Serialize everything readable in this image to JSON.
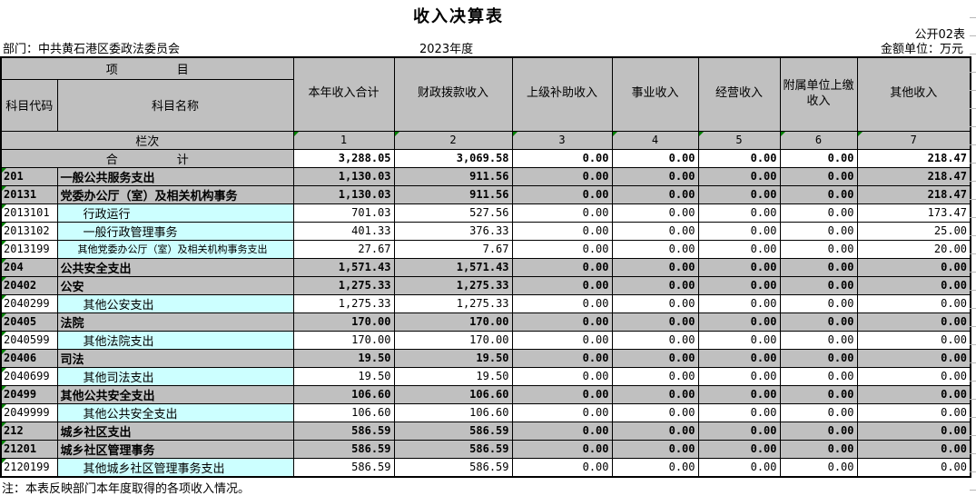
{
  "page": {
    "title": "收入决算表",
    "table_code": "公开02表",
    "department": "部门：中共黄石港区委政法委员会",
    "year": "2023年度",
    "unit": "金额单位：万元",
    "note": "注：本表反映部门本年度取得的各项收入情况。"
  },
  "colors": {
    "header_bg": "#C0C0C0",
    "detail_name_bg": "#CCFFFF",
    "cell_marker_green": "#008000",
    "border": "#000000"
  },
  "table": {
    "project_header": "项　　　　　目",
    "code_header": "科目代码",
    "name_header": "科目名称",
    "column_headers": [
      "本年收入合计",
      "财政拨款收入",
      "上级补助收入",
      "事业收入",
      "经营收入",
      "附属单位上缴收入",
      "其他收入"
    ],
    "lanci_label": "栏次",
    "column_numbers": [
      "1",
      "2",
      "3",
      "4",
      "5",
      "6",
      "7"
    ],
    "total_row": {
      "label": "合　　　　　计",
      "values": [
        "3,288.05",
        "3,069.58",
        "0.00",
        "0.00",
        "0.00",
        "0.00",
        "218.47"
      ]
    },
    "rows": [
      {
        "code": "201",
        "name": "一般公共服务支出",
        "type": "section",
        "values": [
          "1,130.03",
          "911.56",
          "0.00",
          "0.00",
          "0.00",
          "0.00",
          "218.47"
        ]
      },
      {
        "code": "20131",
        "name": "党委办公厅（室）及相关机构事务",
        "type": "section",
        "values": [
          "1,130.03",
          "911.56",
          "0.00",
          "0.00",
          "0.00",
          "0.00",
          "218.47"
        ]
      },
      {
        "code": "2013101",
        "name": "行政运行",
        "type": "detail",
        "values": [
          "701.03",
          "527.56",
          "0.00",
          "0.00",
          "0.00",
          "0.00",
          "173.47"
        ]
      },
      {
        "code": "2013102",
        "name": "一般行政管理事务",
        "type": "detail",
        "values": [
          "401.33",
          "376.33",
          "0.00",
          "0.00",
          "0.00",
          "0.00",
          "25.00"
        ]
      },
      {
        "code": "2013199",
        "name": "其他党委办公厅（室）及相关机构事务支出",
        "type": "detail",
        "small": true,
        "values": [
          "27.67",
          "7.67",
          "0.00",
          "0.00",
          "0.00",
          "0.00",
          "20.00"
        ]
      },
      {
        "code": "204",
        "name": "公共安全支出",
        "type": "section",
        "values": [
          "1,571.43",
          "1,571.43",
          "0.00",
          "0.00",
          "0.00",
          "0.00",
          "0.00"
        ]
      },
      {
        "code": "20402",
        "name": "公安",
        "type": "section",
        "values": [
          "1,275.33",
          "1,275.33",
          "0.00",
          "0.00",
          "0.00",
          "0.00",
          "0.00"
        ]
      },
      {
        "code": "2040299",
        "name": "其他公安支出",
        "type": "detail",
        "values": [
          "1,275.33",
          "1,275.33",
          "0.00",
          "0.00",
          "0.00",
          "0.00",
          "0.00"
        ]
      },
      {
        "code": "20405",
        "name": "法院",
        "type": "section",
        "values": [
          "170.00",
          "170.00",
          "0.00",
          "0.00",
          "0.00",
          "0.00",
          "0.00"
        ]
      },
      {
        "code": "2040599",
        "name": "其他法院支出",
        "type": "detail",
        "values": [
          "170.00",
          "170.00",
          "0.00",
          "0.00",
          "0.00",
          "0.00",
          "0.00"
        ]
      },
      {
        "code": "20406",
        "name": "司法",
        "type": "section",
        "values": [
          "19.50",
          "19.50",
          "0.00",
          "0.00",
          "0.00",
          "0.00",
          "0.00"
        ]
      },
      {
        "code": "2040699",
        "name": "其他司法支出",
        "type": "detail",
        "values": [
          "19.50",
          "19.50",
          "0.00",
          "0.00",
          "0.00",
          "0.00",
          "0.00"
        ]
      },
      {
        "code": "20499",
        "name": "其他公共安全支出",
        "type": "section",
        "values": [
          "106.60",
          "106.60",
          "0.00",
          "0.00",
          "0.00",
          "0.00",
          "0.00"
        ]
      },
      {
        "code": "2049999",
        "name": "其他公共安全支出",
        "type": "detail",
        "values": [
          "106.60",
          "106.60",
          "0.00",
          "0.00",
          "0.00",
          "0.00",
          "0.00"
        ]
      },
      {
        "code": "212",
        "name": "城乡社区支出",
        "type": "section",
        "values": [
          "586.59",
          "586.59",
          "0.00",
          "0.00",
          "0.00",
          "0.00",
          "0.00"
        ]
      },
      {
        "code": "21201",
        "name": "城乡社区管理事务",
        "type": "section",
        "values": [
          "586.59",
          "586.59",
          "0.00",
          "0.00",
          "0.00",
          "0.00",
          "0.00"
        ]
      },
      {
        "code": "2120199",
        "name": "其他城乡社区管理事务支出",
        "type": "detail",
        "values": [
          "586.59",
          "586.59",
          "0.00",
          "0.00",
          "0.00",
          "0.00",
          "0.00"
        ]
      }
    ]
  }
}
